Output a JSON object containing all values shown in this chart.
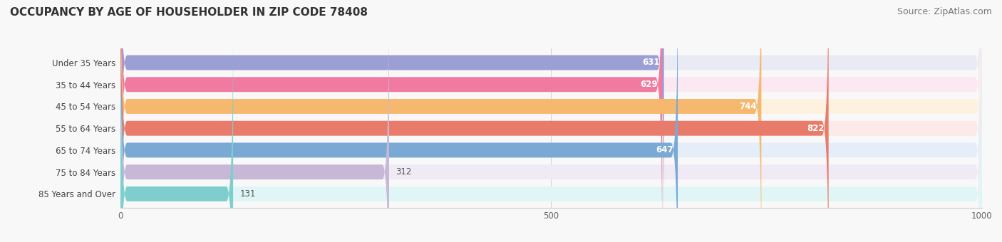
{
  "title": "OCCUPANCY BY AGE OF HOUSEHOLDER IN ZIP CODE 78408",
  "source": "Source: ZipAtlas.com",
  "categories": [
    "Under 35 Years",
    "35 to 44 Years",
    "45 to 54 Years",
    "55 to 64 Years",
    "65 to 74 Years",
    "75 to 84 Years",
    "85 Years and Over"
  ],
  "values": [
    631,
    629,
    744,
    822,
    647,
    312,
    131
  ],
  "bar_colors": [
    "#9b9fd4",
    "#f07aa0",
    "#f5b86e",
    "#e87b6a",
    "#7aaad4",
    "#c8b8d8",
    "#7ecece"
  ],
  "bar_bg_colors": [
    "#eaeaf4",
    "#fce8f2",
    "#fdf2e0",
    "#fbeae8",
    "#e5eef8",
    "#f0eaf5",
    "#e0f5f5"
  ],
  "label_colors": [
    "white",
    "white",
    "white",
    "white",
    "white",
    "dark",
    "dark"
  ],
  "xlim_min": 0,
  "xlim_max": 1000,
  "xticks": [
    0,
    500,
    1000
  ],
  "title_fontsize": 11,
  "source_fontsize": 9,
  "bar_height": 0.68,
  "background_color": "#f8f8f8"
}
